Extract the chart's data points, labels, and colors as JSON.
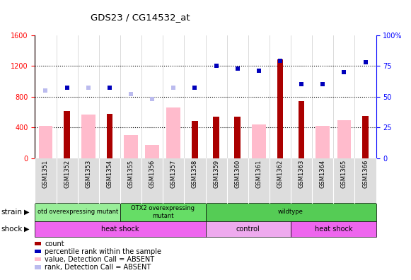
{
  "title": "GDS23 / CG14532_at",
  "samples": [
    "GSM1351",
    "GSM1352",
    "GSM1353",
    "GSM1354",
    "GSM1355",
    "GSM1356",
    "GSM1357",
    "GSM1358",
    "GSM1359",
    "GSM1360",
    "GSM1361",
    "GSM1362",
    "GSM1363",
    "GSM1364",
    "GSM1365",
    "GSM1366"
  ],
  "count_values": [
    null,
    610,
    null,
    580,
    null,
    null,
    null,
    480,
    540,
    540,
    null,
    1280,
    740,
    null,
    null,
    550
  ],
  "absent_bar_values": [
    420,
    null,
    570,
    null,
    305,
    170,
    660,
    null,
    null,
    null,
    440,
    null,
    null,
    420,
    490,
    null
  ],
  "percentile_rank_pct": [
    null,
    57,
    null,
    57,
    null,
    null,
    null,
    57,
    75,
    73,
    71,
    79,
    60,
    60,
    70,
    78
  ],
  "absent_rank_pct": [
    55,
    null,
    57,
    null,
    52,
    48,
    57,
    null,
    null,
    null,
    null,
    null,
    null,
    null,
    null,
    null
  ],
  "strain_groups": [
    {
      "label": "otd overexpressing mutant",
      "start": 0,
      "end": 4,
      "color": "#99EE99"
    },
    {
      "label": "OTX2 overexpressing\nmutant",
      "start": 4,
      "end": 8,
      "color": "#66DD66"
    },
    {
      "label": "wildtype",
      "start": 8,
      "end": 16,
      "color": "#55CC55"
    }
  ],
  "shock_groups": [
    {
      "label": "heat shock",
      "start": 0,
      "end": 8,
      "color": "#EE66EE"
    },
    {
      "label": "control",
      "start": 8,
      "end": 12,
      "color": "#EEAAEE"
    },
    {
      "label": "heat shock",
      "start": 12,
      "end": 16,
      "color": "#EE66EE"
    }
  ],
  "ylim_left": [
    0,
    1600
  ],
  "ylim_right": [
    0,
    100
  ],
  "yticks_left": [
    0,
    400,
    800,
    1200,
    1600
  ],
  "yticks_right": [
    0,
    25,
    50,
    75,
    100
  ],
  "bar_color_count": "#AA0000",
  "bar_color_absent": "#FFBBCC",
  "dot_color_present": "#0000BB",
  "dot_color_absent": "#BBBBEE",
  "legend_items": [
    {
      "label": "count",
      "color": "#AA0000"
    },
    {
      "label": "percentile rank within the sample",
      "color": "#0000BB"
    },
    {
      "label": "value, Detection Call = ABSENT",
      "color": "#FFBBCC"
    },
    {
      "label": "rank, Detection Call = ABSENT",
      "color": "#BBBBEE"
    }
  ]
}
